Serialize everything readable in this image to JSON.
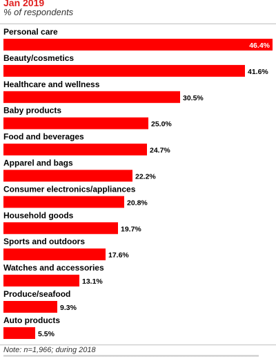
{
  "header": {
    "date": "Jan 2019",
    "subtitle": "% of respondents"
  },
  "footer": {
    "note": "Note: n=1,966; during 2018"
  },
  "colors": {
    "bar": "#ff0000",
    "value_inside": "#ffffff",
    "value_outside": "#000000"
  },
  "chart_data": {
    "type": "bar",
    "orientation": "horizontal",
    "value_suffix": "%",
    "categories": [
      "Personal care",
      "Beauty/cosmetics",
      "Healthcare and wellness",
      "Baby products",
      "Food and beverages",
      "Apparel and bags",
      "Consumer electronics/appliances",
      "Household goods",
      "Sports and outdoors",
      "Watches and accessories",
      "Produce/seafood",
      "Auto products"
    ],
    "values": [
      46.4,
      41.6,
      30.5,
      25.0,
      24.7,
      22.2,
      20.8,
      19.7,
      17.6,
      13.1,
      9.3,
      5.5
    ],
    "value_labels": [
      "46.4%",
      "41.6%",
      "30.5%",
      "25.0%",
      "24.7%",
      "22.2%",
      "20.8%",
      "19.7%",
      "17.6%",
      "13.1%",
      "9.3%",
      "5.5%"
    ],
    "xlim": [
      0,
      46.4
    ]
  }
}
